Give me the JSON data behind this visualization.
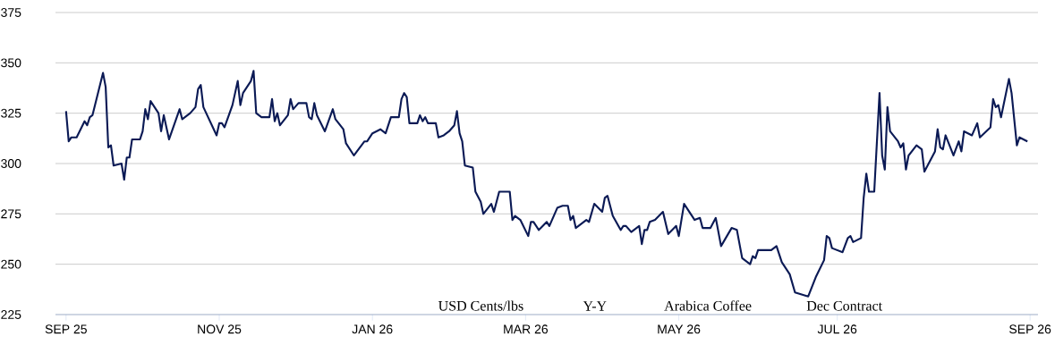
{
  "chart_data": {
    "type": "line",
    "color": "#0b1a55",
    "grid": "y",
    "line_style": "solid",
    "ylim": [
      225,
      375
    ],
    "yticks": [
      225,
      250,
      275,
      300,
      325,
      350,
      375
    ],
    "xlim": [
      "2025-09-08",
      "2026-09-15"
    ],
    "xticks": [
      {
        "value": "2025-09-12",
        "label": "SEP 25"
      },
      {
        "value": "2025-11-09",
        "label": "NOV 25"
      },
      {
        "value": "2026-01-06",
        "label": "JAN 26"
      },
      {
        "value": "2026-03-05",
        "label": "MAR 26"
      },
      {
        "value": "2026-05-02",
        "label": "MAY 26"
      },
      {
        "value": "2026-07-01",
        "label": "JUL 26"
      },
      {
        "value": "2026-09-12",
        "label": "SEP 26"
      }
    ],
    "annotations": [
      "USD Cents/lbs",
      "Y-Y",
      "Arabica Coffee",
      "Dec Contract"
    ],
    "x": [
      "2025-09-12",
      "2025-09-13",
      "2025-09-14",
      "2025-09-16",
      "2025-09-19",
      "2025-09-20",
      "2025-09-21",
      "2025-09-22",
      "2025-09-26",
      "2025-09-27",
      "2025-09-28",
      "2025-09-29",
      "2025-09-30",
      "2025-10-03",
      "2025-10-04",
      "2025-10-05",
      "2025-10-06",
      "2025-10-07",
      "2025-10-10",
      "2025-10-11",
      "2025-10-12",
      "2025-10-13",
      "2025-10-14",
      "2025-10-17",
      "2025-10-18",
      "2025-10-19",
      "2025-10-21",
      "2025-10-25",
      "2025-10-26",
      "2025-10-29",
      "2025-10-31",
      "2025-11-01",
      "2025-11-02",
      "2025-11-03",
      "2025-11-08",
      "2025-11-09",
      "2025-11-10",
      "2025-11-11",
      "2025-11-14",
      "2025-11-16",
      "2025-11-17",
      "2025-11-18",
      "2025-11-21",
      "2025-11-22",
      "2025-11-23",
      "2025-11-25",
      "2025-11-28",
      "2025-11-29",
      "2025-11-30",
      "2025-12-01",
      "2025-12-02",
      "2025-12-05",
      "2025-12-06",
      "2025-12-07",
      "2025-12-09",
      "2025-12-12",
      "2025-12-13",
      "2025-12-14",
      "2025-12-15",
      "2025-12-16",
      "2025-12-19",
      "2025-12-22",
      "2025-12-23",
      "2025-12-26",
      "2025-12-27",
      "2025-12-30",
      "2026-01-03",
      "2026-01-04",
      "2026-01-06",
      "2026-01-09",
      "2026-01-11",
      "2026-01-13",
      "2026-01-16",
      "2026-01-17",
      "2026-01-18",
      "2026-01-19",
      "2026-01-20",
      "2026-01-23",
      "2026-01-24",
      "2026-01-25",
      "2026-01-26",
      "2026-01-27",
      "2026-01-30",
      "2026-01-31",
      "2026-02-02",
      "2026-02-04",
      "2026-02-06",
      "2026-02-07",
      "2026-02-08",
      "2026-02-09",
      "2026-02-10",
      "2026-02-13",
      "2026-02-14",
      "2026-02-16",
      "2026-02-17",
      "2026-02-20",
      "2026-02-21",
      "2026-02-23",
      "2026-02-27",
      "2026-02-28",
      "2026-03-01",
      "2026-03-03",
      "2026-03-06",
      "2026-03-07",
      "2026-03-08",
      "2026-03-10",
      "2026-03-13",
      "2026-03-14",
      "2026-03-17",
      "2026-03-19",
      "2026-03-21",
      "2026-03-22",
      "2026-03-23",
      "2026-03-24",
      "2026-03-27",
      "2026-03-28",
      "2026-03-29",
      "2026-03-31",
      "2026-04-03",
      "2026-04-04",
      "2026-04-05",
      "2026-04-07",
      "2026-04-10",
      "2026-04-11",
      "2026-04-12",
      "2026-04-14",
      "2026-04-17",
      "2026-04-18",
      "2026-04-19",
      "2026-04-20",
      "2026-04-21",
      "2026-04-23",
      "2026-04-26",
      "2026-04-28",
      "2026-05-01",
      "2026-05-02",
      "2026-05-04",
      "2026-05-08",
      "2026-05-10",
      "2026-05-11",
      "2026-05-14",
      "2026-05-16",
      "2026-05-18",
      "2026-05-22",
      "2026-05-24",
      "2026-05-26",
      "2026-05-29",
      "2026-05-30",
      "2026-05-31",
      "2026-06-01",
      "2026-06-06",
      "2026-06-07",
      "2026-06-08",
      "2026-06-10",
      "2026-06-13",
      "2026-06-15",
      "2026-06-20",
      "2026-06-23",
      "2026-06-26",
      "2026-06-27",
      "2026-06-28",
      "2026-06-29",
      "2026-07-03",
      "2026-07-05",
      "2026-07-06",
      "2026-07-07",
      "2026-07-10",
      "2026-07-11",
      "2026-07-12",
      "2026-07-13",
      "2026-07-15",
      "2026-07-17",
      "2026-07-18",
      "2026-07-19",
      "2026-07-20",
      "2026-07-21",
      "2026-07-24",
      "2026-07-25",
      "2026-07-26",
      "2026-07-27",
      "2026-07-28",
      "2026-07-31",
      "2026-08-02",
      "2026-08-03",
      "2026-08-07",
      "2026-08-08",
      "2026-08-09",
      "2026-08-10",
      "2026-08-11",
      "2026-08-14",
      "2026-08-16",
      "2026-08-17",
      "2026-08-18",
      "2026-08-21",
      "2026-08-23",
      "2026-08-24",
      "2026-08-28",
      "2026-08-29",
      "2026-08-30",
      "2026-08-31",
      "2026-09-01",
      "2026-09-04",
      "2026-09-05",
      "2026-09-07",
      "2026-09-08",
      "2026-09-11"
    ],
    "values": [
      326,
      311,
      313,
      313,
      321,
      319,
      323,
      324,
      345,
      338,
      308,
      309,
      299,
      300,
      292,
      303,
      303,
      312,
      312,
      316,
      327,
      322,
      331,
      325,
      316,
      324,
      312,
      327,
      322,
      325,
      328,
      337,
      339,
      328,
      314,
      320,
      320,
      318,
      329,
      341,
      329,
      335,
      341,
      346,
      325,
      323,
      323,
      332,
      321,
      325,
      319,
      324,
      332,
      327,
      330,
      330,
      323,
      322,
      330,
      324,
      316,
      327,
      322,
      317,
      310,
      304,
      311,
      311,
      315,
      317,
      315,
      323,
      323,
      332,
      335,
      333,
      320,
      320,
      324,
      321,
      323,
      320,
      320,
      313,
      314,
      316,
      319,
      326,
      315,
      311,
      299,
      298,
      286,
      281,
      275,
      280,
      276,
      286,
      286,
      272,
      274,
      272,
      264,
      271,
      271,
      267,
      271,
      269,
      278,
      279,
      279,
      272,
      274,
      268,
      271,
      272,
      271,
      280,
      276,
      283,
      284,
      274,
      267,
      269,
      269,
      266,
      269,
      260,
      267,
      267,
      271,
      272,
      276,
      265,
      269,
      264,
      280,
      272,
      273,
      268,
      268,
      273,
      259,
      268,
      267,
      253,
      250,
      254,
      253,
      257,
      257,
      258,
      259,
      251,
      245,
      236,
      234,
      244,
      252,
      264,
      263,
      258,
      256,
      263,
      264,
      261,
      263,
      283,
      295,
      286,
      286,
      335,
      304,
      297,
      328,
      316,
      311,
      308,
      310,
      297,
      304,
      309,
      307,
      296,
      306,
      317,
      308,
      307,
      314,
      304,
      311,
      306,
      316,
      314,
      320,
      313,
      318,
      332,
      328,
      329,
      323,
      342,
      335,
      309,
      313,
      311
    ]
  }
}
